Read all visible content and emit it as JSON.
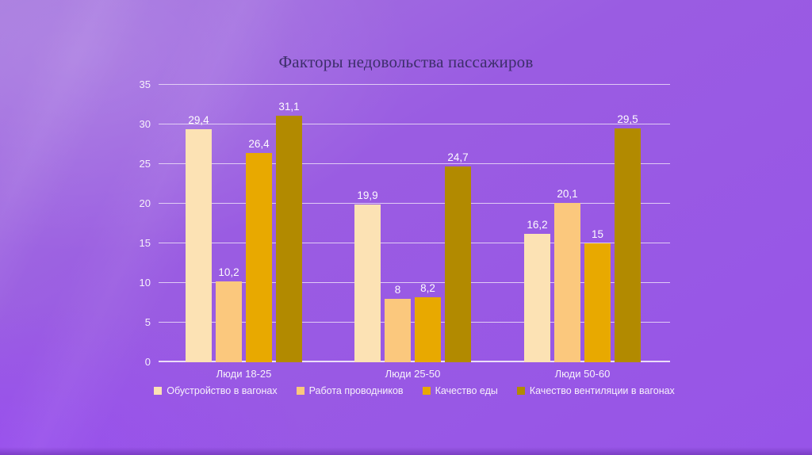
{
  "theme": {
    "background_base": "#9754E8",
    "background_light": "#A678DE",
    "title_color": "#3D2E6B",
    "text_color": "#F7F1FB",
    "gridline_color": "#ECDEF8"
  },
  "chart_data": {
    "type": "bar",
    "title": "Факторы недовольства пассажиров",
    "categories": [
      "Люди 18-25",
      "Люди 25-50",
      "Люди 50-60"
    ],
    "series": [
      {
        "name": "Обустройство в вагонах",
        "color": "#FCE2B4",
        "values": [
          29.4,
          19.9,
          16.2
        ],
        "labels": [
          "29,4",
          "19,9",
          "16,2"
        ]
      },
      {
        "name": "Работа проводников",
        "color": "#FBC87D",
        "values": [
          10.2,
          8,
          20.1
        ],
        "labels": [
          "10,2",
          "8",
          "20,1"
        ]
      },
      {
        "name": "Качество еды",
        "color": "#E8A900",
        "values": [
          26.4,
          8.2,
          15
        ],
        "labels": [
          "26,4",
          "8,2",
          "15"
        ]
      },
      {
        "name": "Качество вентиляции в вагонах",
        "color": "#B28A00",
        "values": [
          31.1,
          24.7,
          29.5
        ],
        "labels": [
          "31,1",
          "24,7",
          "29,5"
        ]
      }
    ],
    "yticks": [
      0,
      5,
      10,
      15,
      20,
      25,
      30,
      35
    ],
    "ylim": [
      0,
      35
    ],
    "grid": true,
    "legend_position": "bottom",
    "xlabel": "",
    "ylabel": ""
  }
}
